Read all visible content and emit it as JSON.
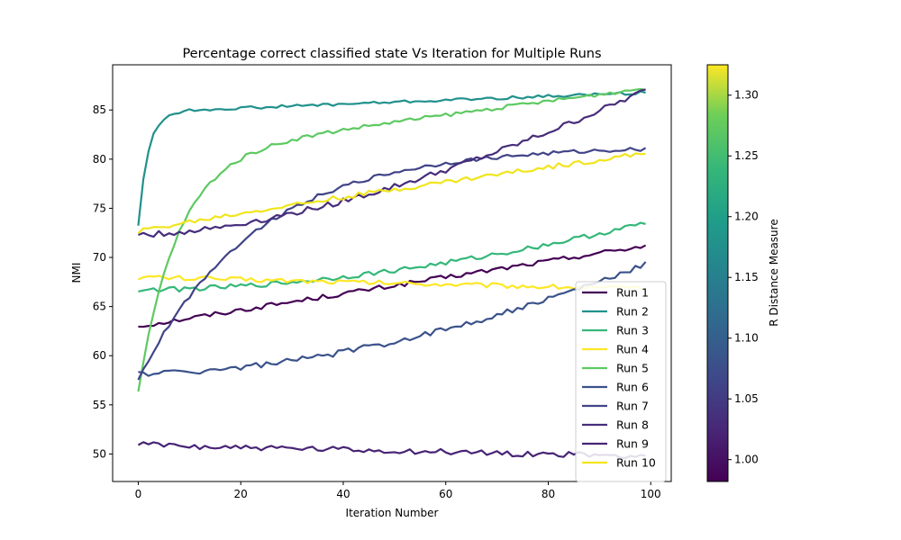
{
  "chart_data": {
    "type": "line",
    "title": "Percentage correct classified state Vs Iteration for Multiple Runs",
    "xlabel": "Iteration Number",
    "ylabel": "NMI",
    "xlim": [
      -5,
      104
    ],
    "ylim": [
      47.2,
      89.6
    ],
    "xticks": [
      0,
      20,
      40,
      60,
      80,
      100
    ],
    "yticks": [
      50,
      55,
      60,
      65,
      70,
      75,
      80,
      85
    ],
    "grid": false,
    "legend_position": "lower-right",
    "colorbar": {
      "label": "R Distance Measure",
      "min": 0.982,
      "max": 1.325,
      "ticks": [
        1.0,
        1.05,
        1.1,
        1.15,
        1.2,
        1.25,
        1.3
      ],
      "tick_labels": [
        "1.00",
        "1.05",
        "1.10",
        "1.15",
        "1.20",
        "1.25",
        "1.30"
      ]
    },
    "series": [
      {
        "name": "Run 1",
        "color": "#440154",
        "shape": "linear",
        "params": [
          63.0,
          71.2,
          1.0,
          0.25
        ]
      },
      {
        "name": "Run 2",
        "color": "#21918c",
        "shape": "rise",
        "params": [
          73.3,
          84.8,
          1.9,
          0.02,
          0.15
        ]
      },
      {
        "name": "Run 3",
        "color": "#35b779",
        "shape": "linear",
        "params": [
          66.7,
          73.5,
          1.8,
          0.25
        ]
      },
      {
        "name": "Run 4",
        "color": "#fde725",
        "shape": "linear",
        "params": [
          68.0,
          66.8,
          1.0,
          0.25
        ]
      },
      {
        "name": "Run 5",
        "color": "#5ec962",
        "shape": "rise",
        "params": [
          56.2,
          80.3,
          7.5,
          0.07,
          0.2
        ]
      },
      {
        "name": "Run 6",
        "color": "#3b528b",
        "shape": "linear",
        "params": [
          58.2,
          69.3,
          1.8,
          0.3
        ]
      },
      {
        "name": "Run 7",
        "color": "#414487",
        "shape": "rise",
        "params": [
          57.5,
          80.8,
          22.0,
          0.005,
          0.2
        ]
      },
      {
        "name": "Run 8",
        "color": "#472d7b",
        "shape": "linear",
        "params": [
          72.3,
          87.0,
          1.6,
          0.3
        ]
      },
      {
        "name": "Run 9",
        "color": "#482475",
        "shape": "linear",
        "params": [
          51.0,
          49.8,
          0.8,
          0.3
        ]
      },
      {
        "name": "Run 10",
        "color": "#f1e51d",
        "shape": "linear",
        "params": [
          72.6,
          80.6,
          0.9,
          0.25
        ]
      }
    ]
  }
}
